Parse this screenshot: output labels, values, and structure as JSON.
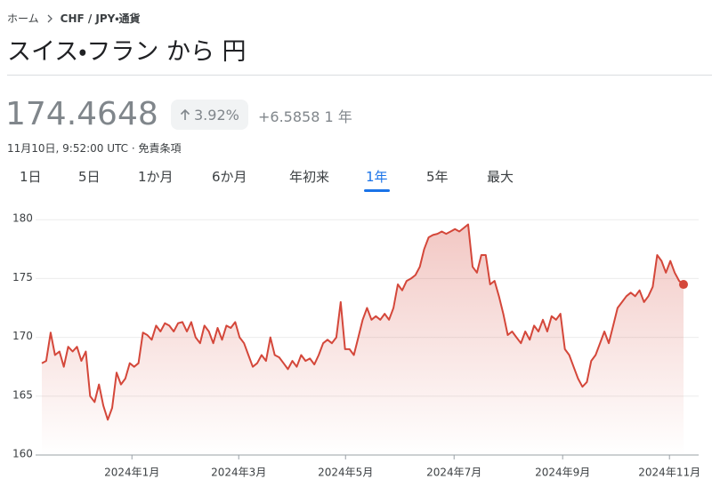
{
  "breadcrumb": {
    "home": "ホーム",
    "current": "CHF / JPY・通貨"
  },
  "title": "スイス・フラン から 円",
  "quote": {
    "price": "174.4648",
    "change_percent": "3.92%",
    "change": "+6.5858",
    "period": "1 年",
    "timestamp": "11月10日, 9:52:00 UTC · 免責条項"
  },
  "tabs": {
    "items": [
      "1日",
      "5日",
      "1か月",
      "6か月",
      "年初来",
      "1年",
      "5年",
      "最大"
    ],
    "selected": 5
  },
  "chart_data": {
    "type": "line",
    "series": [
      {
        "color": "#d4473a",
        "values": [
          167.8,
          168,
          170.4,
          168.5,
          168.8,
          167.5,
          169.2,
          168.8,
          169.2,
          168,
          168.8,
          165,
          164.5,
          166,
          164.2,
          163,
          164,
          167,
          166,
          166.5,
          167.8,
          167.5,
          167.8,
          170.4,
          170.2,
          169.8,
          171,
          170.5,
          171.2,
          171,
          170.5,
          171.2,
          171.3,
          170.5,
          171.3,
          170,
          169.5,
          171,
          170.5,
          169.5,
          170.8,
          169.8,
          171,
          170.8,
          171.3,
          170,
          169.5,
          168.5,
          167.5,
          167.8,
          168.5,
          168,
          170,
          168.5,
          168.3,
          167.8,
          167.3,
          168,
          167.5,
          168.5,
          168,
          168.2,
          167.7,
          168.5,
          169.5,
          169.8,
          169.5,
          170,
          173,
          169,
          169,
          168.5,
          170,
          171.5,
          172.5,
          171.5,
          171.8,
          171.5,
          172,
          171.5,
          172.5,
          174.5,
          174,
          174.8,
          175,
          175.3,
          176,
          177.5,
          178.5,
          178.7,
          178.8,
          179,
          178.8,
          179,
          179.2,
          179,
          179.3,
          179.6,
          176,
          175.5,
          177,
          177,
          174.5,
          174.8,
          173.5,
          172,
          170.2,
          170.5,
          170,
          169.5,
          170.5,
          169.8,
          171,
          170.5,
          171.5,
          170.5,
          171.8,
          171.5,
          172,
          169,
          168.5,
          167.5,
          166.5,
          165.8,
          166.2,
          168,
          168.5,
          169.5,
          170.5,
          169.5,
          171,
          172.5,
          173,
          173.5,
          173.8,
          173.5,
          174,
          173,
          173.5,
          174.3,
          177,
          176.5,
          175.5,
          176.5,
          175.5,
          174.8,
          174.5
        ]
      }
    ],
    "xlim": [
      0,
      146
    ],
    "xticks": [
      {
        "value": 20.5,
        "label": "2024年1月"
      },
      {
        "value": 44.8,
        "label": "2024年3月"
      },
      {
        "value": 69.1,
        "label": "2024年5月"
      },
      {
        "value": 93.8,
        "label": "2024年7月"
      },
      {
        "value": 118.5,
        "label": "2024年9月"
      },
      {
        "value": 142.8,
        "label": "2024年11月"
      }
    ],
    "ylim": [
      160,
      181
    ],
    "yticks": [
      160,
      165,
      170,
      175,
      180
    ],
    "grid": true
  }
}
